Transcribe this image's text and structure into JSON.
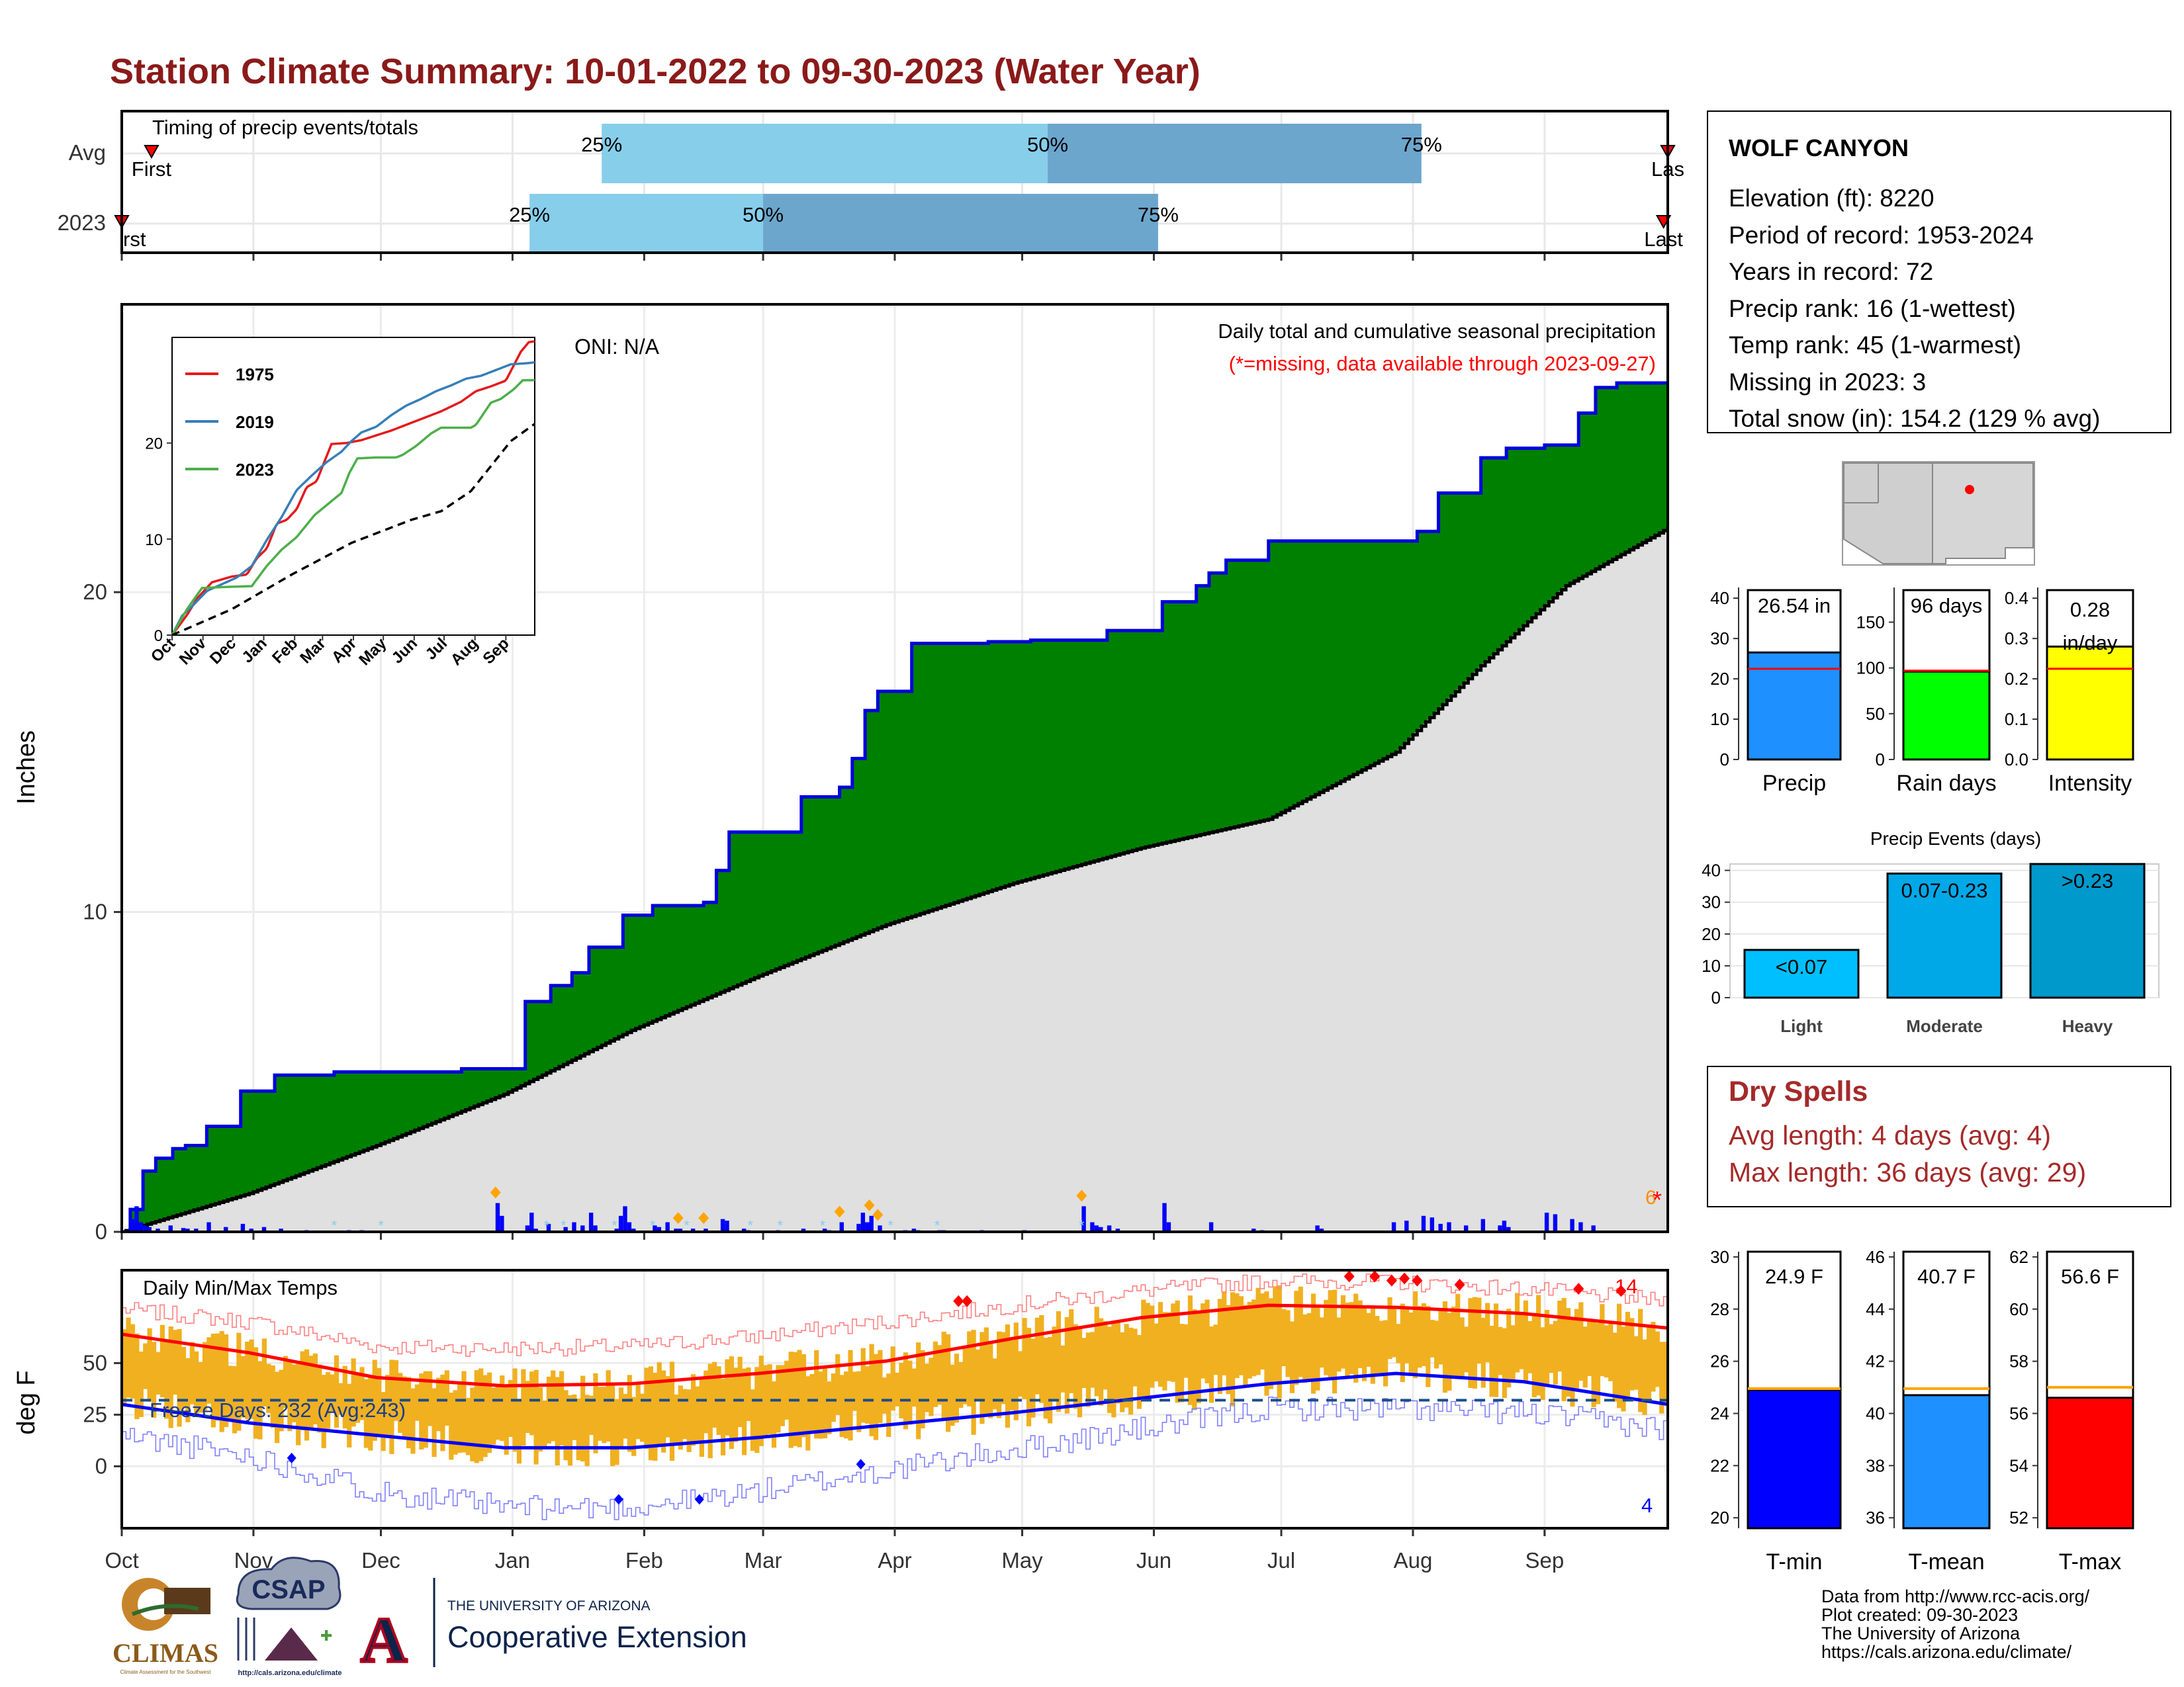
{
  "page": {
    "title": "Station Climate Summary: 10-01-2022 to 09-30-2023 (Water Year)",
    "footer_lines": [
      "Data from http://www.rcc-acis.org/",
      "Plot created: 09-30-2023",
      "The University of Arizona",
      "https://cals.arizona.edu/climate/"
    ],
    "logos": {
      "climas": "CLIMAS",
      "climas_sub": "Climate Assessment for the Southwest",
      "csap": "CSAP",
      "csap_sub": "http://cals.arizona.edu/climate",
      "ua_small": "THE UNIVERSITY OF ARIZONA",
      "ua_big": "Cooperative Extension"
    }
  },
  "colors": {
    "title": "#8b1a1a",
    "green": "#008000",
    "blue_line": "#0000dd",
    "avg_fill": "#e0e0e0",
    "light_blue": "#87ceeb",
    "steel_blue": "#6ca6cd",
    "orange_bar": "#f0b020",
    "precip_bar": "#1e90ff",
    "rain_bar": "#00ff00",
    "intensity_bar": "#ffff00",
    "light_event": "#00bfff",
    "moderate_event": "#00a8e8",
    "heavy_event": "#0099cc",
    "red_line": "#ff0000",
    "dry_text": "#a52a2a"
  },
  "station": {
    "name": "WOLF CANYON",
    "lines": [
      "Elevation (ft): 8220",
      "Period of record: 1953-2024",
      "Years in record: 72",
      "Precip rank: 16 (1-wettest)",
      "Temp rank: 45 (1-warmest)",
      "Missing in 2023: 3",
      "Total snow (in): 154.2 (129 % avg)"
    ]
  },
  "months": [
    "Oct",
    "Nov",
    "Dec",
    "Jan",
    "Feb",
    "Mar",
    "Apr",
    "May",
    "Jun",
    "Jul",
    "Aug",
    "Sep"
  ],
  "timing": {
    "title": "Timing of precip events/totals",
    "row_labels": [
      "Avg",
      "2023"
    ],
    "pct_labels": [
      "25%",
      "50%",
      "75%"
    ],
    "first_label": "First",
    "first_label_clipped": "rst",
    "last_label": "Last",
    "last_label_clipped": "Las",
    "avg": {
      "first": 7,
      "p25": 113,
      "p50": 218,
      "p75": 306,
      "last": 364
    },
    "y2023": {
      "first": 0,
      "p25": 96,
      "p50": 151,
      "p75": 244,
      "last": 363
    }
  },
  "precip_panel": {
    "ylabel": "Inches",
    "yticks": [
      0,
      10,
      20
    ],
    "ylim": [
      0,
      29
    ],
    "oni": "ONI: N/A",
    "title": "Daily total and cumulative seasonal precipitation",
    "subtitle": "(*=missing, data available through 2023-09-27)",
    "missing_count": "6"
  },
  "inset": {
    "legend": [
      "1975",
      "2019",
      "2023"
    ],
    "yticks": [
      0,
      10,
      20
    ],
    "months": [
      "Oct",
      "Nov",
      "Dec",
      "Jan",
      "Feb",
      "Mar",
      "Apr",
      "May",
      "Jun",
      "Jul",
      "Aug",
      "Sep"
    ]
  },
  "temp_panel": {
    "ylabel": "deg F",
    "title": "Daily Min/Max Temps",
    "freeze_text": "Freeze Days: 232 (Avg:243)",
    "max_count": "14",
    "min_count": "4",
    "yticks": [
      0,
      25,
      50
    ]
  },
  "summary_bars": [
    {
      "label": "Precip",
      "value_label": "26.54 in",
      "yticks": [
        "0",
        "10",
        "20",
        "30",
        "40"
      ]
    },
    {
      "label": "Rain days",
      "value_label": "96 days",
      "yticks": [
        "0",
        "50",
        "100",
        "150"
      ]
    },
    {
      "label": "Intensity",
      "value_label": "0.28 in/day",
      "yticks": [
        "0.0",
        "0.1",
        "0.2",
        "0.3",
        "0.4"
      ]
    }
  ],
  "events": {
    "title": "Precip Events (days)",
    "categories": [
      "Light",
      "Moderate",
      "Heavy"
    ],
    "value_labels": [
      "<0.07",
      "0.07-0.23",
      ">0.23"
    ],
    "yticks": [
      "0",
      "10",
      "20",
      "30",
      "40"
    ]
  },
  "dry_spells": {
    "title": "Dry Spells",
    "avg_line": "Avg length: 4 days (avg: 4)",
    "max_line": "Max length: 36 days (avg: 29)"
  },
  "temp_bars": [
    {
      "label": "T-min",
      "value_label": "24.9 F",
      "yticks": [
        "20",
        "22",
        "24",
        "26",
        "28",
        "30"
      ]
    },
    {
      "label": "T-mean",
      "value_label": "40.7 F",
      "yticks": [
        "36",
        "38",
        "40",
        "42",
        "44",
        "46"
      ]
    },
    {
      "label": "T-max",
      "value_label": "56.6 F",
      "yticks": [
        "52",
        "54",
        "56",
        "58",
        "60",
        "62"
      ]
    }
  ],
  "chart_data": [
    {
      "type": "area",
      "title": "Daily total and cumulative seasonal precipitation",
      "ylabel": "Inches",
      "x_unit": "day of water year (0 = Oct 1)",
      "ylim": [
        0,
        29
      ],
      "grid": true,
      "series": [
        {
          "name": "2023",
          "x": [
            0,
            2,
            5,
            8,
            12,
            15,
            20,
            28,
            36,
            43,
            50,
            62,
            80,
            95,
            101,
            106,
            110,
            118,
            125,
            131,
            134,
            137,
            140,
            143,
            160,
            169,
            172,
            175,
            178,
            186,
            195,
            199,
            201,
            204,
            214,
            225,
            232,
            245,
            253,
            256,
            260,
            270,
            300,
            305,
            310,
            320,
            326,
            335,
            343,
            347,
            352,
            364
          ],
          "values": [
            0,
            0.7,
            1.9,
            2.3,
            2.6,
            2.7,
            3.3,
            4.4,
            4.9,
            4.9,
            5.0,
            5.0,
            5.1,
            7.2,
            7.7,
            8.1,
            8.9,
            9.9,
            10.2,
            10.2,
            10.2,
            10.3,
            11.3,
            12.5,
            13.6,
            13.9,
            14.8,
            16.3,
            16.9,
            18.4,
            18.4,
            18.4,
            18.4,
            18.45,
            18.5,
            18.5,
            18.8,
            19.7,
            20.2,
            20.6,
            21.0,
            21.6,
            21.6,
            21.9,
            23.1,
            24.2,
            24.5,
            24.6,
            25.6,
            26.4,
            26.54,
            26.54
          ]
        },
        {
          "name": "Avg",
          "x": [
            0,
            30,
            60,
            90,
            120,
            150,
            180,
            210,
            240,
            270,
            300,
            320,
            340,
            364
          ],
          "values": [
            0,
            1.2,
            2.7,
            4.3,
            6.3,
            8.0,
            9.6,
            10.9,
            12.0,
            12.9,
            15.0,
            17.7,
            20.2,
            22.0
          ]
        }
      ]
    },
    {
      "type": "bar",
      "title": "Daily total and cumulative seasonal precipitation",
      "x": [
        2,
        3,
        4,
        5,
        6,
        8,
        11,
        14,
        15,
        17,
        20,
        24,
        28,
        30,
        33,
        37,
        43,
        53,
        56,
        88,
        89,
        95,
        96,
        97,
        100,
        104,
        106,
        108,
        110,
        111,
        116,
        117,
        118,
        119,
        120,
        125,
        126,
        128,
        130,
        131,
        134,
        137,
        141,
        142,
        146,
        147,
        154,
        160,
        165,
        166,
        169,
        173,
        174,
        175,
        176,
        178,
        184,
        186,
        187,
        192,
        193,
        202,
        212,
        226,
        228,
        229,
        230,
        232,
        234,
        245,
        246,
        256,
        266,
        268,
        281,
        282,
        299,
        302,
        306,
        308,
        310,
        312,
        316,
        320,
        324,
        325,
        326,
        335,
        337,
        341,
        343,
        346
      ],
      "values": [
        0.4,
        0.8,
        0.3,
        0.2,
        0.15,
        0.1,
        0.2,
        0.12,
        0.1,
        0.1,
        0.3,
        0.15,
        0.25,
        0.1,
        0.15,
        0.1,
        0.05,
        0.05,
        0.05,
        0.9,
        0.5,
        0.2,
        0.6,
        0.1,
        0.25,
        0.15,
        0.3,
        0.2,
        0.6,
        0.2,
        0.1,
        0.5,
        0.8,
        0.3,
        0.1,
        0.2,
        0.15,
        0.3,
        0.1,
        0.1,
        0.1,
        0.1,
        0.4,
        0.35,
        0.1,
        0.05,
        0.05,
        0.1,
        0.1,
        0.05,
        0.3,
        0.25,
        0.6,
        0.3,
        0.5,
        0.2,
        0.05,
        0.1,
        0.05,
        0.05,
        0.05,
        0.05,
        0.05,
        0.8,
        0.3,
        0.2,
        0.15,
        0.2,
        0.1,
        0.9,
        0.3,
        0.3,
        0.1,
        0.05,
        0.2,
        0.1,
        0.3,
        0.35,
        0.5,
        0.45,
        0.25,
        0.3,
        0.2,
        0.4,
        0.2,
        0.35,
        0.15,
        0.6,
        0.55,
        0.4,
        0.3,
        0.2
      ]
    },
    {
      "type": "line",
      "title": "",
      "xlabel": "",
      "ylabel": "",
      "ylim": [
        0,
        30
      ],
      "categories": [
        "Oct",
        "Nov",
        "Dec",
        "Jan",
        "Feb",
        "Mar",
        "Apr",
        "May",
        "Jun",
        "Jul",
        "Aug",
        "Sep"
      ],
      "series": [
        {
          "name": "1975",
          "x": [
            0,
            15,
            25,
            40,
            60,
            75,
            85,
            95,
            105,
            115,
            125,
            135,
            145,
            160,
            175,
            190,
            205,
            220,
            240,
            255,
            270,
            290,
            305,
            320,
            335,
            345,
            350,
            358,
            364
          ],
          "values": [
            0,
            2.1,
            3.8,
            5.5,
            6.1,
            6.3,
            8.0,
            9.0,
            11.6,
            12.0,
            13.1,
            15.4,
            16.0,
            19.9,
            20.0,
            20.3,
            20.8,
            21.3,
            22.1,
            22.7,
            23.3,
            24.3,
            25.4,
            25.9,
            26.5,
            28.5,
            29.5,
            30.5,
            30.6
          ]
        },
        {
          "name": "2019",
          "x": [
            0,
            10,
            20,
            35,
            50,
            65,
            80,
            95,
            110,
            125,
            140,
            155,
            170,
            180,
            190,
            205,
            220,
            235,
            250,
            265,
            280,
            295,
            310,
            325,
            340,
            355,
            364
          ],
          "values": [
            0,
            2.0,
            3.0,
            4.6,
            5.3,
            6.0,
            7.2,
            9.9,
            12.3,
            15.1,
            16.6,
            18.0,
            19.1,
            20.2,
            21.1,
            21.7,
            22.9,
            23.9,
            24.6,
            25.4,
            26.0,
            26.7,
            27.0,
            27.6,
            28.2,
            28.3,
            28.4
          ]
        },
        {
          "name": "2023",
          "x": [
            0,
            15,
            30,
            50,
            80,
            95,
            110,
            125,
            143,
            170,
            178,
            186,
            205,
            225,
            232,
            245,
            260,
            270,
            300,
            305,
            320,
            330,
            343,
            352,
            364
          ],
          "values": [
            0,
            2.7,
            4.9,
            5.0,
            5.1,
            7.2,
            8.9,
            10.2,
            12.5,
            14.8,
            16.9,
            18.4,
            18.5,
            18.5,
            18.8,
            19.7,
            21.0,
            21.6,
            21.6,
            21.9,
            24.2,
            24.6,
            25.6,
            26.54,
            26.54
          ]
        },
        {
          "name": "Avg",
          "x": [
            0,
            60,
            120,
            180,
            240,
            270,
            300,
            340,
            364
          ],
          "values": [
            0,
            2.7,
            6.3,
            9.6,
            12.0,
            12.9,
            15.0,
            20.2,
            22.0
          ]
        }
      ]
    },
    {
      "type": "line",
      "title": "Daily Min/Max Temps",
      "ylabel": "deg F",
      "x_unit": "day of water year (0 = Oct 1)",
      "series": [
        {
          "name": "Avg max",
          "x": [
            0,
            30,
            60,
            90,
            120,
            150,
            180,
            210,
            240,
            270,
            300,
            330,
            364
          ],
          "values": [
            64,
            55,
            43,
            39,
            40,
            45,
            51,
            62,
            72,
            78,
            77,
            74,
            67
          ]
        },
        {
          "name": "Avg min",
          "x": [
            0,
            30,
            60,
            90,
            120,
            150,
            180,
            210,
            240,
            270,
            300,
            330,
            364
          ],
          "values": [
            30,
            21,
            15,
            9,
            9,
            14,
            20,
            26,
            33,
            40,
            45,
            41,
            30
          ]
        },
        {
          "name": "Record max",
          "x": [
            0,
            30,
            60,
            90,
            120,
            150,
            180,
            210,
            240,
            270,
            300,
            330,
            364
          ],
          "values": [
            76,
            70,
            58,
            57,
            58,
            63,
            70,
            78,
            85,
            90,
            89,
            86,
            80
          ]
        },
        {
          "name": "Record min",
          "x": [
            0,
            30,
            60,
            90,
            120,
            150,
            180,
            210,
            240,
            270,
            300,
            330,
            364
          ],
          "values": [
            15,
            5,
            -12,
            -20,
            -20,
            -12,
            -2,
            8,
            18,
            28,
            28,
            26,
            18
          ]
        }
      ],
      "freeze_line": 32
    },
    {
      "type": "bar",
      "title": "",
      "categories": [
        "Precip"
      ],
      "values": [
        26.54
      ],
      "avg_line": 22.5,
      "ylim": [
        0,
        42
      ]
    },
    {
      "type": "bar",
      "title": "",
      "categories": [
        "Rain days"
      ],
      "values": [
        96
      ],
      "avg_line": 97,
      "ylim": [
        0,
        185
      ]
    },
    {
      "type": "bar",
      "title": "",
      "categories": [
        "Intensity"
      ],
      "values": [
        0.28
      ],
      "avg_line": 0.225,
      "ylim": [
        0,
        0.42
      ]
    },
    {
      "type": "bar",
      "title": "Precip Events (days)",
      "categories": [
        "Light",
        "Moderate",
        "Heavy"
      ],
      "values": [
        15,
        39,
        42
      ],
      "ylim": [
        0,
        42
      ]
    },
    {
      "type": "bar",
      "title": "",
      "categories": [
        "T-min"
      ],
      "values": [
        24.9
      ],
      "avg_line": 24.95,
      "ylim": [
        19.6,
        30.2
      ]
    },
    {
      "type": "bar",
      "title": "",
      "categories": [
        "T-mean"
      ],
      "values": [
        40.7
      ],
      "avg_line": 40.95,
      "ylim": [
        35.6,
        46.2
      ]
    },
    {
      "type": "bar",
      "title": "",
      "categories": [
        "T-max"
      ],
      "values": [
        56.6
      ],
      "avg_line": 57.0,
      "ylim": [
        51.6,
        62.2
      ]
    }
  ]
}
